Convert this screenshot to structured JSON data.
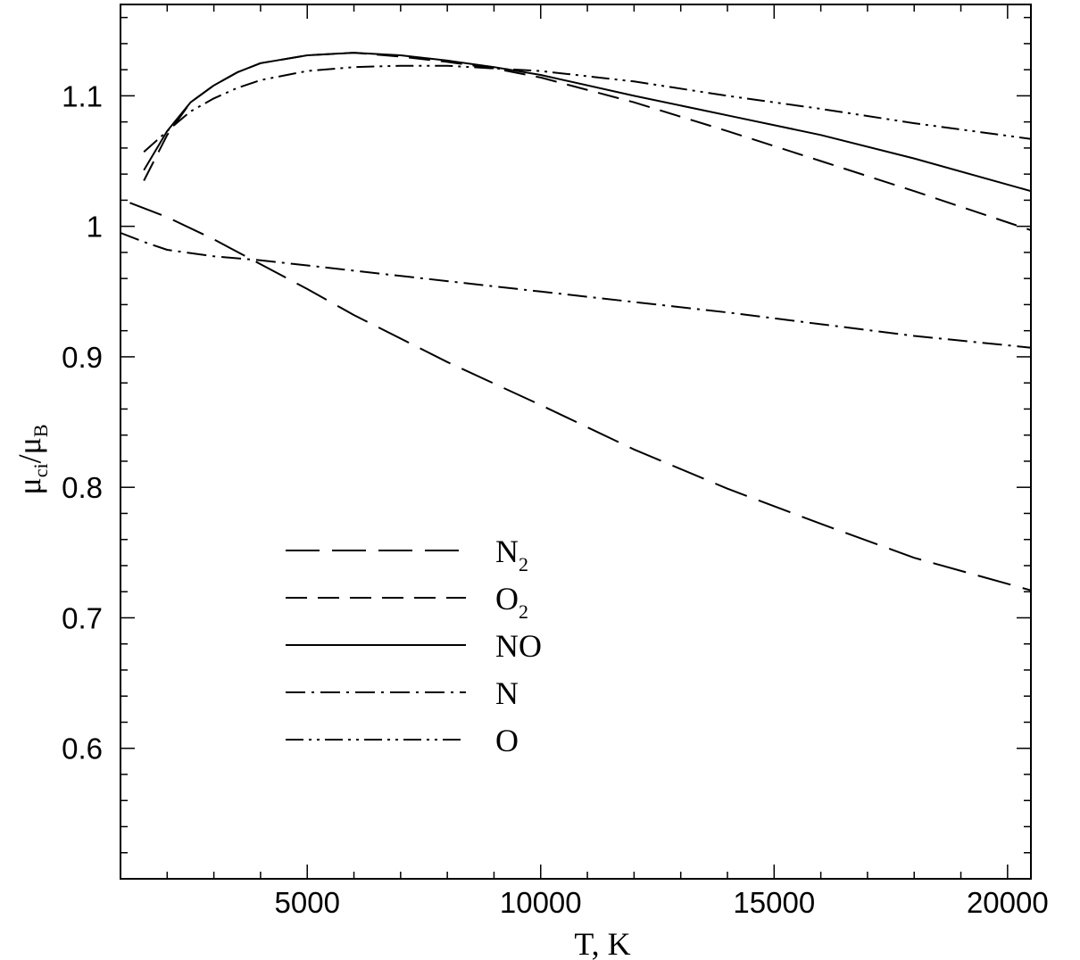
{
  "chart_data": {
    "type": "line",
    "title": "",
    "xlabel": "T, K",
    "ylabel": {
      "base": "μ",
      "sub1": "ci",
      "slash": "/",
      "base2": "μ",
      "sub2": "B"
    },
    "xlim": [
      1000,
      20500
    ],
    "ylim": [
      0.5,
      1.17
    ],
    "x_ticks": [
      5000,
      10000,
      15000,
      20000
    ],
    "y_ticks": [
      0.6,
      0.7,
      0.8,
      0.9,
      1.0,
      1.1
    ],
    "y_tick_labels": [
      "0.6",
      "0.7",
      "0.8",
      "0.9",
      "1",
      "1.1"
    ],
    "x_minor_step": 1000,
    "y_minor_step": 0.02,
    "grid": false,
    "legend_position": "lower-left",
    "series": [
      {
        "name": "N",
        "name_sub": "2",
        "dash": "long-dash",
        "x": [
          1200,
          2000,
          3000,
          4000,
          5000,
          6000,
          8000,
          10000,
          12000,
          14000,
          16000,
          18000,
          20500
        ],
        "y": [
          1.018,
          1.007,
          0.99,
          0.971,
          0.952,
          0.932,
          0.896,
          0.863,
          0.829,
          0.799,
          0.772,
          0.746,
          0.721
        ]
      },
      {
        "name": "O",
        "name_sub": "2",
        "dash": "dash",
        "x": [
          1500,
          2000,
          2500,
          3000,
          3500,
          4000,
          5000,
          6000,
          7000,
          8000,
          9000,
          10000,
          12000,
          14000,
          16000,
          18000,
          20500
        ],
        "y": [
          1.035,
          1.07,
          1.095,
          1.108,
          1.118,
          1.125,
          1.131,
          1.133,
          1.13,
          1.126,
          1.121,
          1.114,
          1.095,
          1.073,
          1.05,
          1.027,
          0.997
        ]
      },
      {
        "name": "NO",
        "name_sub": "",
        "dash": "solid",
        "x": [
          1500,
          2000,
          2500,
          3000,
          3500,
          4000,
          5000,
          6000,
          7000,
          8000,
          9000,
          10000,
          12000,
          14000,
          16000,
          18000,
          20500
        ],
        "y": [
          1.043,
          1.073,
          1.095,
          1.108,
          1.118,
          1.125,
          1.131,
          1.133,
          1.131,
          1.127,
          1.122,
          1.116,
          1.1,
          1.085,
          1.07,
          1.052,
          1.027
        ]
      },
      {
        "name": "N",
        "name_sub": "",
        "dash": "dash-dot",
        "x": [
          1000,
          1500,
          2000,
          3000,
          4000,
          5000,
          6000,
          8000,
          10000,
          12000,
          14000,
          16000,
          18000,
          20500
        ],
        "y": [
          0.995,
          0.988,
          0.982,
          0.977,
          0.974,
          0.97,
          0.966,
          0.958,
          0.95,
          0.942,
          0.934,
          0.925,
          0.916,
          0.907
        ]
      },
      {
        "name": "O",
        "name_sub": "",
        "dash": "dash-dot-dot",
        "x": [
          1500,
          2000,
          2500,
          3000,
          3500,
          4000,
          5000,
          6000,
          7000,
          8000,
          9000,
          10000,
          12000,
          14000,
          16000,
          18000,
          20500
        ],
        "y": [
          1.057,
          1.073,
          1.088,
          1.098,
          1.106,
          1.112,
          1.119,
          1.122,
          1.123,
          1.123,
          1.121,
          1.119,
          1.111,
          1.1,
          1.09,
          1.079,
          1.067
        ]
      }
    ]
  }
}
